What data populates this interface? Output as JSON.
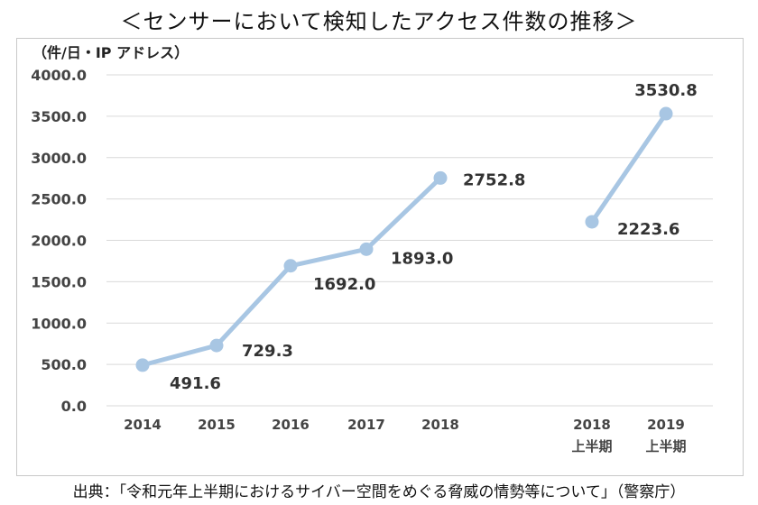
{
  "title": "＜センサーにおいて検知したアクセス件数の推移＞",
  "unit_label": "（件/日・IP アドレス）",
  "source": "出典：「令和元年上半期におけるサイバー空間をめぐる脅威の情勢等について」（警察庁）",
  "colors": {
    "line": "#a8c6e3",
    "marker": "#a8c6e3",
    "grid": "#d9d9d9"
  },
  "chart_data": {
    "type": "line",
    "ylim": [
      0,
      4000
    ],
    "yticks": [
      "0.0",
      "500.0",
      "1000.0",
      "1500.0",
      "2000.0",
      "2500.0",
      "3000.0",
      "3500.0",
      "4000.0"
    ],
    "grid": true,
    "categories": [
      {
        "line1": "2014",
        "line2": ""
      },
      {
        "line1": "2015",
        "line2": ""
      },
      {
        "line1": "2016",
        "line2": ""
      },
      {
        "line1": "2017",
        "line2": ""
      },
      {
        "line1": "2018",
        "line2": ""
      },
      {
        "line1": "2018",
        "line2": "上半期"
      },
      {
        "line1": "2019",
        "line2": "上半期"
      }
    ],
    "series": [
      {
        "points": [
          {
            "category": 0,
            "value": 491.6,
            "label": "491.6"
          },
          {
            "category": 1,
            "value": 729.3,
            "label": "729.3"
          },
          {
            "category": 2,
            "value": 1692.0,
            "label": "1692.0"
          },
          {
            "category": 3,
            "value": 1893.0,
            "label": "1893.0"
          },
          {
            "category": 4,
            "value": 2752.8,
            "label": "2752.8"
          }
        ]
      },
      {
        "points": [
          {
            "category": 5,
            "value": 2223.6,
            "label": "2223.6"
          },
          {
            "category": 6,
            "value": 3530.8,
            "label": "3530.8"
          }
        ]
      }
    ]
  }
}
